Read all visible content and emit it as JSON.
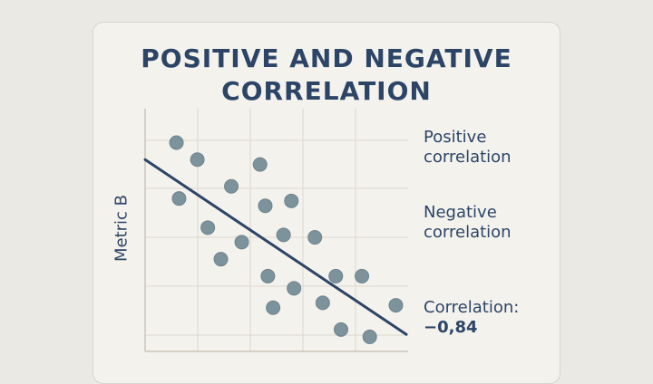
{
  "chart_data": {
    "type": "scatter",
    "title_lines": [
      "POSITIVE AND NEGATIVE",
      "CORRELATION"
    ],
    "xlabel": "",
    "ylabel": "Metric B",
    "xlim": [
      0,
      10
    ],
    "ylim": [
      0,
      10
    ],
    "grid": true,
    "points": [
      {
        "x": 1.2,
        "y": 8.6
      },
      {
        "x": 2.0,
        "y": 7.9
      },
      {
        "x": 3.3,
        "y": 6.8
      },
      {
        "x": 4.4,
        "y": 7.7
      },
      {
        "x": 1.3,
        "y": 6.3
      },
      {
        "x": 4.6,
        "y": 6.0
      },
      {
        "x": 5.6,
        "y": 6.2
      },
      {
        "x": 2.4,
        "y": 5.1
      },
      {
        "x": 3.7,
        "y": 4.5
      },
      {
        "x": 5.3,
        "y": 4.8
      },
      {
        "x": 6.5,
        "y": 4.7
      },
      {
        "x": 2.9,
        "y": 3.8
      },
      {
        "x": 4.7,
        "y": 3.1
      },
      {
        "x": 5.7,
        "y": 2.6
      },
      {
        "x": 7.3,
        "y": 3.1
      },
      {
        "x": 8.3,
        "y": 3.1
      },
      {
        "x": 4.9,
        "y": 1.8
      },
      {
        "x": 6.8,
        "y": 2.0
      },
      {
        "x": 7.5,
        "y": 0.9
      },
      {
        "x": 8.6,
        "y": 0.6
      },
      {
        "x": 9.6,
        "y": 1.9
      }
    ],
    "trend_line": {
      "x": [
        0,
        10
      ],
      "y": [
        7.9,
        0.7
      ]
    },
    "legend_placement": "right",
    "colors": {
      "points": "#7d939c",
      "line": "#2c4566",
      "text": "#2c4566"
    }
  },
  "legend": {
    "positive": [
      "Positive",
      "correlation"
    ],
    "negative": [
      "Negative",
      "correlation"
    ],
    "correlation_label": "Correlation:",
    "correlation_value": "−0,84"
  }
}
